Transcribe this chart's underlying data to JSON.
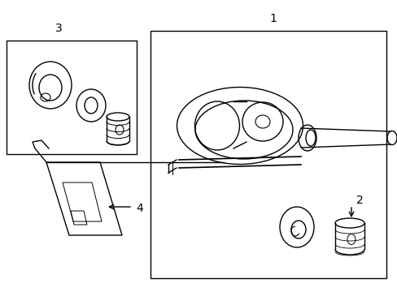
{
  "background_color": "#ffffff",
  "line_color": "#000000",
  "label1": "1",
  "label2": "2",
  "label3": "3",
  "label4": "4"
}
